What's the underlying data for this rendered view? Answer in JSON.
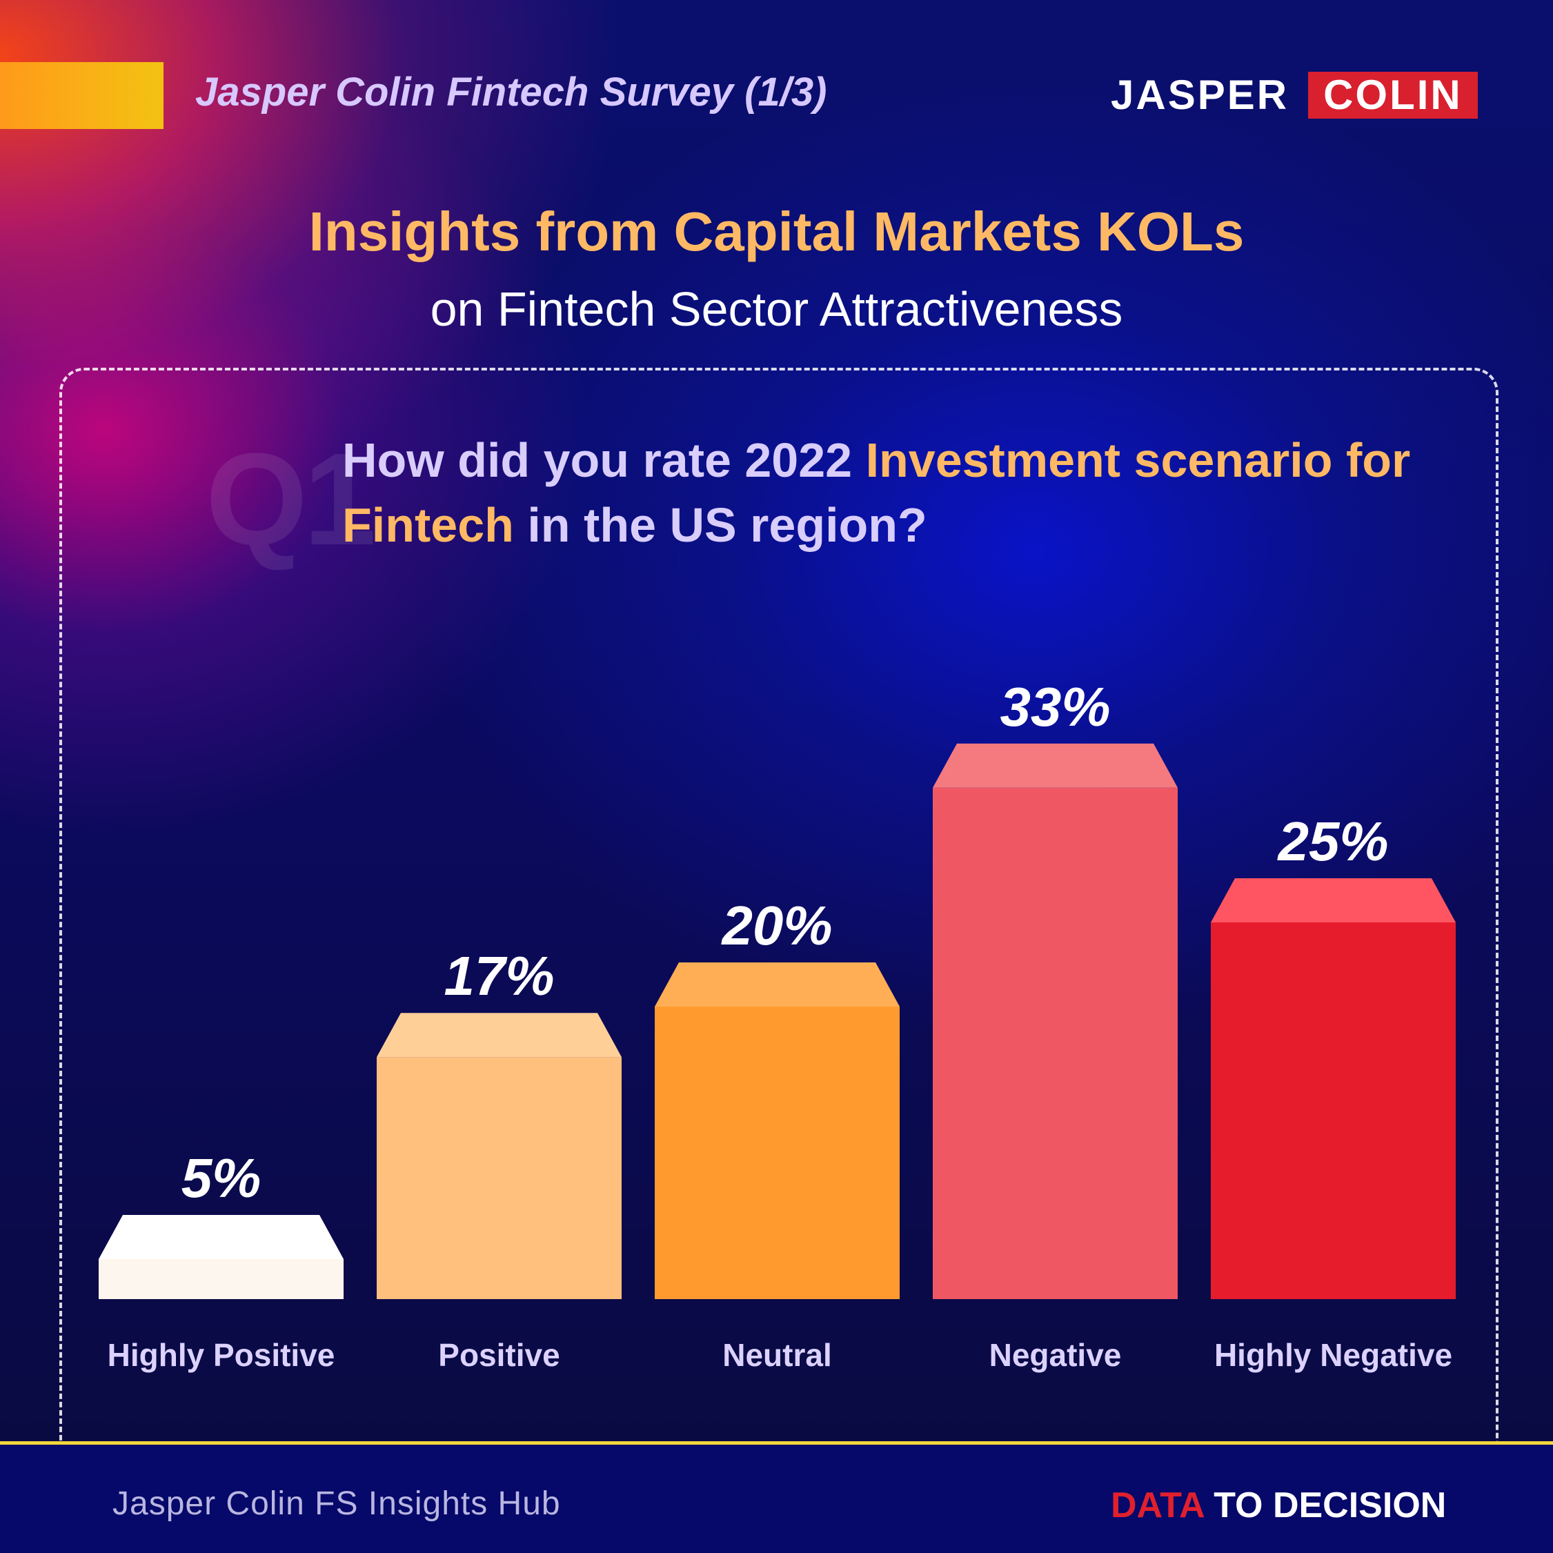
{
  "header": {
    "survey_label": "Jasper Colin Fintech Survey (1/3)",
    "logo_left": "JASPER",
    "logo_right": "COLIN"
  },
  "title": "Insights from Capital Markets KOLs",
  "subtitle": "on Fintech Sector Attractiveness",
  "question": {
    "marker": "Q1",
    "part1": "How did you rate 2022 ",
    "part2": "Investment scenario for Fintech",
    "part3": " in the US region?"
  },
  "chart_data": {
    "type": "bar",
    "categories": [
      "Highly Positive",
      "Positive",
      "Neutral",
      "Negative",
      "Highly Negative"
    ],
    "values": [
      5,
      17,
      20,
      33,
      25
    ],
    "value_labels": [
      "5%",
      "17%",
      "20%",
      "33%",
      "25%"
    ],
    "colors": [
      "#fdf6ee",
      "#ffc07e",
      "#ff9b2e",
      "#ef5863",
      "#e61c2c"
    ],
    "top_colors": [
      "#ffffff",
      "#ffcf98",
      "#ffae55",
      "#f47a80",
      "#ff5562"
    ],
    "ylim": [
      0,
      35
    ],
    "grid": false,
    "legend": "none"
  },
  "footer": {
    "hub": "Jasper Colin FS Insights Hub",
    "tag_red": "DATA",
    "tag_white": " TO DECISION",
    "line_color": "#f5d63c"
  }
}
